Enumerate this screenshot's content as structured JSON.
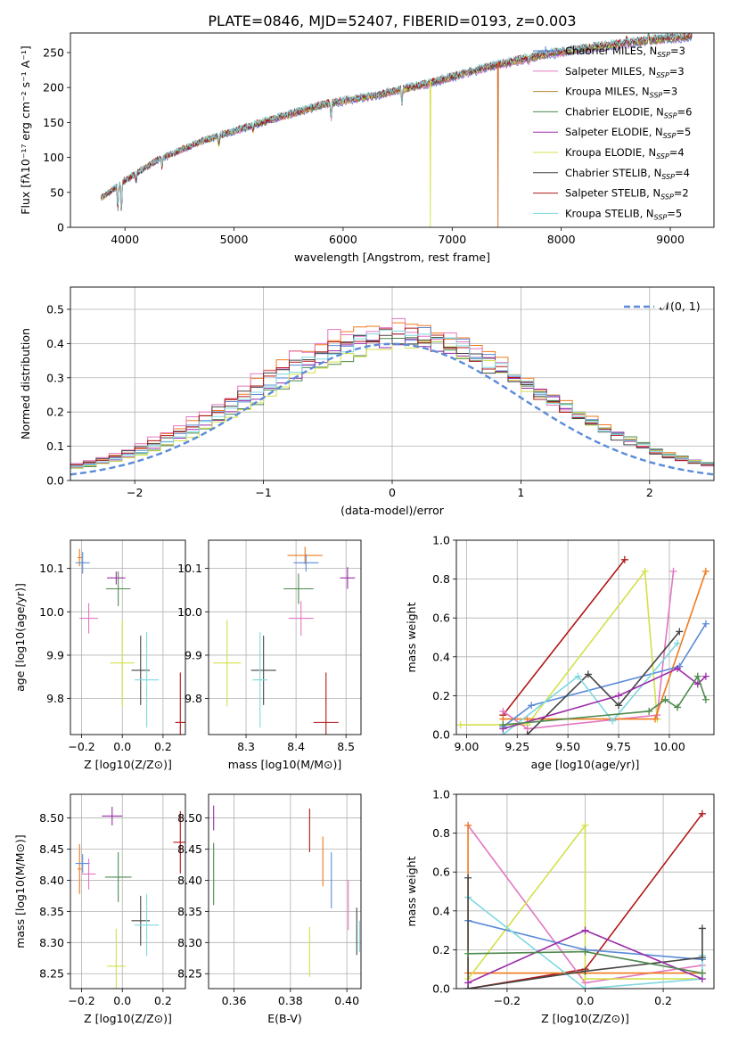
{
  "title": "PLATE=0846, MJD=52407, FIBERID=0193, z=0.003",
  "chart_data": [
    {
      "id": "spectrum",
      "type": "line",
      "xlabel": "wavelength [Angstrom, rest frame]",
      "ylabel": "Flux [fλ10⁻¹⁷ erg cm⁻² s⁻¹ A⁻¹]",
      "xlim": [
        3500,
        9400
      ],
      "ylim": [
        0,
        278
      ],
      "xticks": [
        4000,
        5000,
        6000,
        7000,
        8000,
        9000
      ],
      "yticks": [
        0,
        50,
        100,
        150,
        200,
        250
      ],
      "grid": false,
      "legend": "upper-right",
      "trend": {
        "x": [
          3780,
          4000,
          4300,
          4700,
          5200,
          5800,
          6300,
          6800,
          7300,
          7800,
          8300,
          8800,
          9200
        ],
        "y": [
          42,
          68,
          98,
          125,
          150,
          178,
          192,
          210,
          232,
          250,
          262,
          272,
          278
        ]
      },
      "sharp_drops": [
        {
          "x": 6800,
          "to": 0,
          "series": "Kroupa ELODIE, N_SSP=4"
        },
        {
          "x": 7420,
          "to": 0,
          "series": "Kroupa MILES, N_SSP=3"
        }
      ],
      "series": [
        {
          "name": "Chabrier MILES, N",
          "sub": "SSP",
          "eq": "=3",
          "color": "#4c72d9",
          "marker": "+"
        },
        {
          "name": "Salpeter MILES, N",
          "sub": "SSP",
          "eq": "=3",
          "color": "#e377c2"
        },
        {
          "name": "Kroupa MILES, N",
          "sub": "SSP",
          "eq": "=3",
          "color": "#b8862b"
        },
        {
          "name": "Chabrier ELODIE, N",
          "sub": "SSP",
          "eq": "=6",
          "color": "#4e8a4e"
        },
        {
          "name": "Salpeter ELODIE, N",
          "sub": "SSP",
          "eq": "=5",
          "color": "#9b2ca8"
        },
        {
          "name": "Kroupa ELODIE, N",
          "sub": "SSP",
          "eq": "=4",
          "color": "#d4e04a"
        },
        {
          "name": "Chabrier STELIB, N",
          "sub": "SSP",
          "eq": "=4",
          "color": "#444444"
        },
        {
          "name": "Salpeter STELIB, N",
          "sub": "SSP",
          "eq": "=2",
          "color": "#b01818"
        },
        {
          "name": "Kroupa STELIB, N",
          "sub": "SSP",
          "eq": "=5",
          "color": "#7fd8e0"
        }
      ]
    },
    {
      "id": "residuals",
      "type": "step",
      "xlabel": "(data-model)/error",
      "ylabel": "Normed distribution",
      "xlim": [
        -2.5,
        2.5
      ],
      "ylim": [
        0,
        0.565
      ],
      "xticks": [
        -2,
        -1,
        0,
        1,
        2
      ],
      "xtick_labels": [
        "−2",
        "−1",
        "0",
        "1",
        "2"
      ],
      "yticks": [
        0.0,
        0.1,
        0.2,
        0.3,
        0.4,
        0.5
      ],
      "ytick_labels": [
        "0.0",
        "0.1",
        "0.2",
        "0.3",
        "0.4",
        "0.5"
      ],
      "grid": true,
      "legend": "upper-right",
      "reference": {
        "name": "𝒩(0, 1)",
        "color": "#5b8bd8",
        "mu": 0,
        "sigma": 1
      },
      "bin_width": 0.1,
      "histograms": [
        {
          "color": "#f07a1c",
          "scale": 1.12,
          "shift": 0.02
        },
        {
          "color": "#e377c2",
          "scale": 1.1,
          "shift": -0.04
        },
        {
          "color": "#5b8bd8",
          "scale": 1.06,
          "shift": 0.05
        },
        {
          "color": "#4e8a4e",
          "scale": 0.98,
          "shift": 0.12
        },
        {
          "color": "#9b2ca8",
          "scale": 1.0,
          "shift": 0.08
        },
        {
          "color": "#d4e04a",
          "scale": 0.96,
          "shift": 0.1
        },
        {
          "color": "#444444",
          "scale": 1.03,
          "shift": -0.02
        },
        {
          "color": "#b01818",
          "scale": 1.05,
          "shift": 0.0
        },
        {
          "color": "#7fd8e0",
          "scale": 1.02,
          "shift": 0.06
        }
      ]
    },
    {
      "id": "age_vs_Z",
      "type": "scatter",
      "xlabel": "Z [log10(Z/Z⊙)]",
      "ylabel": "age  [log10(age/yr)]",
      "xlim": [
        -0.255,
        0.31
      ],
      "ylim": [
        9.717,
        10.165
      ],
      "xticks": [
        -0.2,
        0.0,
        0.2
      ],
      "xtick_labels": [
        "−0.2",
        "0.0",
        "0.2"
      ],
      "yticks": [
        9.8,
        9.9,
        10.0,
        10.1
      ],
      "ytick_labels": [
        "9.8",
        "9.9",
        "10.0",
        "10.1"
      ],
      "grid": true,
      "points": [
        {
          "x": -0.21,
          "y": 10.125,
          "xerr": 0.01,
          "yerr": 0.02,
          "color": "#f07a1c"
        },
        {
          "x": -0.195,
          "y": 10.113,
          "xerr": 0.035,
          "yerr": 0.025,
          "color": "#5b8bd8"
        },
        {
          "x": -0.03,
          "y": 10.078,
          "xerr": 0.045,
          "yerr": 0.015,
          "color": "#9b2ca8"
        },
        {
          "x": -0.02,
          "y": 10.053,
          "xerr": 0.06,
          "yerr": 0.04,
          "color": "#4e8a4e"
        },
        {
          "x": -0.165,
          "y": 9.985,
          "xerr": 0.045,
          "yerr": 0.035,
          "color": "#e377c2"
        },
        {
          "x": 0.0,
          "y": 9.882,
          "xerr": 0.06,
          "yerr": 0.1,
          "color": "#d4e04a"
        },
        {
          "x": 0.09,
          "y": 9.865,
          "xerr": 0.045,
          "yerr": 0.08,
          "color": "#444444"
        },
        {
          "x": 0.12,
          "y": 9.843,
          "xerr": 0.06,
          "yerr": 0.11,
          "color": "#7fd8e0"
        },
        {
          "x": 0.285,
          "y": 9.745,
          "xerr": 0.025,
          "yerr": 0.115,
          "color": "#b01818"
        }
      ]
    },
    {
      "id": "age_vs_mass",
      "type": "scatter",
      "xlabel": "mass [log10(M/M⊙)]",
      "ylabel": "",
      "xlim": [
        8.225,
        8.53
      ],
      "ylim": [
        9.717,
        10.165
      ],
      "xticks": [
        8.3,
        8.4,
        8.5
      ],
      "xtick_labels": [
        "8.3",
        "8.4",
        "8.5"
      ],
      "yticks": [
        9.8,
        9.9,
        10.0,
        10.1
      ],
      "ytick_labels": [
        "9.8",
        "9.9",
        "10.0",
        "10.1"
      ],
      "grid": true,
      "points": [
        {
          "x": 8.418,
          "y": 10.13,
          "xerr": 0.035,
          "yerr": 0.02,
          "color": "#f07a1c"
        },
        {
          "x": 8.42,
          "y": 10.113,
          "xerr": 0.025,
          "yerr": 0.02,
          "color": "#5b8bd8"
        },
        {
          "x": 8.503,
          "y": 10.078,
          "xerr": 0.015,
          "yerr": 0.025,
          "color": "#9b2ca8"
        },
        {
          "x": 8.405,
          "y": 10.053,
          "xerr": 0.03,
          "yerr": 0.035,
          "color": "#4e8a4e"
        },
        {
          "x": 8.41,
          "y": 9.985,
          "xerr": 0.025,
          "yerr": 0.04,
          "color": "#e377c2"
        },
        {
          "x": 8.262,
          "y": 9.882,
          "xerr": 0.028,
          "yerr": 0.1,
          "color": "#d4e04a"
        },
        {
          "x": 8.335,
          "y": 9.865,
          "xerr": 0.025,
          "yerr": 0.08,
          "color": "#444444"
        },
        {
          "x": 8.328,
          "y": 9.843,
          "xerr": 0.015,
          "yerr": 0.11,
          "color": "#7fd8e0"
        },
        {
          "x": 8.46,
          "y": 9.745,
          "xerr": 0.025,
          "yerr": 0.115,
          "color": "#b01818"
        }
      ]
    },
    {
      "id": "weight_vs_age",
      "type": "line",
      "xlabel": "age  [log10(age/yr)]",
      "ylabel": "mass weight",
      "xlim": [
        8.95,
        10.22
      ],
      "ylim": [
        0,
        1
      ],
      "xticks": [
        9.0,
        9.25,
        9.5,
        9.75,
        10.0
      ],
      "xtick_labels": [
        "9.00",
        "9.25",
        "9.50",
        "9.75",
        "10.00"
      ],
      "yticks": [
        0.0,
        0.2,
        0.4,
        0.6,
        0.8,
        1.0
      ],
      "ytick_labels": [
        "0.0",
        "0.2",
        "0.4",
        "0.6",
        "0.8",
        "1.0"
      ],
      "grid": true,
      "series": [
        {
          "color": "#b01818",
          "x": [
            9.18,
            9.78
          ],
          "y": [
            0.1,
            0.9
          ]
        },
        {
          "color": "#d4e04a",
          "x": [
            8.97,
            9.3,
            9.88,
            9.94
          ],
          "y": [
            0.05,
            0.05,
            0.84,
            0.08
          ]
        },
        {
          "color": "#e377c2",
          "x": [
            9.18,
            9.3,
            9.94,
            10.02
          ],
          "y": [
            0.12,
            0.03,
            0.1,
            0.84
          ]
        },
        {
          "color": "#f07a1c",
          "x": [
            9.18,
            9.3,
            9.93,
            10.18
          ],
          "y": [
            0.08,
            0.08,
            0.08,
            0.84
          ]
        },
        {
          "color": "#5b8bd8",
          "x": [
            9.18,
            9.32,
            10.05,
            10.18
          ],
          "y": [
            0.04,
            0.15,
            0.35,
            0.57
          ]
        },
        {
          "color": "#444444",
          "x": [
            9.3,
            9.6,
            9.75,
            10.05
          ],
          "y": [
            0.0,
            0.31,
            0.15,
            0.53
          ]
        },
        {
          "color": "#7fd8e0",
          "x": [
            9.18,
            9.55,
            9.72,
            10.04
          ],
          "y": [
            0.0,
            0.3,
            0.07,
            0.47
          ]
        },
        {
          "color": "#9b2ca8",
          "x": [
            9.18,
            9.75,
            10.04,
            10.14,
            10.18
          ],
          "y": [
            0.03,
            0.2,
            0.34,
            0.26,
            0.3
          ]
        },
        {
          "color": "#4e8a4e",
          "x": [
            9.18,
            9.9,
            9.98,
            10.04,
            10.14,
            10.18
          ],
          "y": [
            0.05,
            0.12,
            0.18,
            0.14,
            0.3,
            0.18
          ]
        }
      ]
    },
    {
      "id": "mass_vs_Z",
      "type": "scatter",
      "xlabel": "Z [log10(Z/Z⊙)]",
      "ylabel": "mass [log10(M/M⊙)]",
      "xlim": [
        -0.255,
        0.31
      ],
      "ylim": [
        8.226,
        8.538
      ],
      "xticks": [
        -0.2,
        0.0,
        0.2
      ],
      "xtick_labels": [
        "−0.2",
        "0.0",
        "0.2"
      ],
      "yticks": [
        8.25,
        8.3,
        8.35,
        8.4,
        8.45,
        8.5
      ],
      "ytick_labels": [
        "8.25",
        "8.30",
        "8.35",
        "8.40",
        "8.45",
        "8.50"
      ],
      "grid": true,
      "points": [
        {
          "x": -0.21,
          "y": 8.418,
          "xerr": 0.01,
          "yerr": 0.04,
          "color": "#f07a1c"
        },
        {
          "x": -0.195,
          "y": 8.427,
          "xerr": 0.035,
          "yerr": 0.015,
          "color": "#5b8bd8"
        },
        {
          "x": -0.165,
          "y": 8.41,
          "xerr": 0.035,
          "yerr": 0.025,
          "color": "#e377c2"
        },
        {
          "x": -0.05,
          "y": 8.503,
          "xerr": 0.05,
          "yerr": 0.015,
          "color": "#9b2ca8"
        },
        {
          "x": -0.02,
          "y": 8.405,
          "xerr": 0.065,
          "yerr": 0.04,
          "color": "#4e8a4e"
        },
        {
          "x": -0.03,
          "y": 8.262,
          "xerr": 0.045,
          "yerr": 0.06,
          "color": "#d4e04a"
        },
        {
          "x": 0.09,
          "y": 8.335,
          "xerr": 0.045,
          "yerr": 0.04,
          "color": "#444444"
        },
        {
          "x": 0.12,
          "y": 8.328,
          "xerr": 0.06,
          "yerr": 0.05,
          "color": "#7fd8e0"
        },
        {
          "x": 0.285,
          "y": 8.461,
          "xerr": 0.035,
          "yerr": 0.05,
          "color": "#b01818"
        }
      ]
    },
    {
      "id": "mass_vs_EBV",
      "type": "scatter",
      "xlabel": "E(B-V)",
      "ylabel": "",
      "xlim": [
        0.351,
        0.405
      ],
      "ylim": [
        8.226,
        8.538
      ],
      "xticks": [
        0.36,
        0.38,
        0.4
      ],
      "xtick_labels": [
        "0.36",
        "0.38",
        "0.40"
      ],
      "yticks": [
        8.25,
        8.3,
        8.35,
        8.4,
        8.45,
        8.5
      ],
      "ytick_labels": [
        "8.25",
        "8.30",
        "8.35",
        "8.40",
        "8.45",
        "8.50"
      ],
      "grid": true,
      "points": [
        {
          "x": 0.3528,
          "y": 8.5,
          "xerr": 0,
          "yerr": 0.02,
          "color": "#9b2ca8"
        },
        {
          "x": 0.3528,
          "y": 8.41,
          "xerr": 0,
          "yerr": 0.05,
          "color": "#4e8a4e"
        },
        {
          "x": 0.3868,
          "y": 8.48,
          "xerr": 0,
          "yerr": 0.035,
          "color": "#b01818"
        },
        {
          "x": 0.3915,
          "y": 8.43,
          "xerr": 0,
          "yerr": 0.04,
          "color": "#f07a1c"
        },
        {
          "x": 0.3945,
          "y": 8.4,
          "xerr": 0,
          "yerr": 0.045,
          "color": "#5b8bd8"
        },
        {
          "x": 0.3868,
          "y": 8.285,
          "xerr": 0,
          "yerr": 0.04,
          "color": "#d4e04a"
        },
        {
          "x": 0.4005,
          "y": 8.36,
          "xerr": 0,
          "yerr": 0.04,
          "color": "#e377c2"
        },
        {
          "x": 0.4035,
          "y": 8.318,
          "xerr": 0,
          "yerr": 0.038,
          "color": "#444444"
        },
        {
          "x": 0.4045,
          "y": 8.31,
          "xerr": 0,
          "yerr": 0.025,
          "color": "#7fd8e0"
        }
      ]
    },
    {
      "id": "weight_vs_Z",
      "type": "line",
      "xlabel": "Z [log10(Z/Z⊙)]",
      "ylabel": "mass weight",
      "xlim": [
        -0.33,
        0.33
      ],
      "ylim": [
        0,
        1
      ],
      "xticks": [
        -0.2,
        0.0,
        0.2
      ],
      "xtick_labels": [
        "−0.2",
        "0.0",
        "0.2"
      ],
      "yticks": [
        0.0,
        0.2,
        0.4,
        0.6,
        0.8,
        1.0
      ],
      "ytick_labels": [
        "0.0",
        "0.2",
        "0.4",
        "0.6",
        "0.8",
        "1.0"
      ],
      "grid": true,
      "series": [
        {
          "color": "#b01818",
          "x": [
            -0.3,
            0.0,
            0.3
          ],
          "y": [
            0.0,
            0.1,
            0.9
          ]
        },
        {
          "color": "#e377c2",
          "x": [
            -0.3,
            0.0,
            0.3
          ],
          "y": [
            0.84,
            0.03,
            0.12
          ]
        },
        {
          "color": "#f07a1c",
          "x": [
            -0.3,
            -0.3,
            0.0,
            0.3
          ],
          "y": [
            0.84,
            0.08,
            0.08,
            0.08
          ]
        },
        {
          "color": "#d4e04a",
          "x": [
            -0.3,
            0.0,
            0.0,
            0.3
          ],
          "y": [
            0.05,
            0.84,
            0.05,
            0.05
          ]
        },
        {
          "color": "#5b8bd8",
          "x": [
            -0.3,
            0.0,
            0.3
          ],
          "y": [
            0.35,
            0.2,
            0.15
          ]
        },
        {
          "color": "#7fd8e0",
          "x": [
            -0.3,
            0.0,
            0.3,
            0.3
          ],
          "y": [
            0.47,
            0.0,
            0.05,
            0.17
          ]
        },
        {
          "color": "#444444",
          "x": [
            -0.3,
            -0.3,
            0.0,
            0.3,
            0.3
          ],
          "y": [
            0.57,
            0.0,
            0.09,
            0.16,
            0.31
          ]
        },
        {
          "color": "#9b2ca8",
          "x": [
            -0.3,
            0.0,
            0.3
          ],
          "y": [
            0.03,
            0.3,
            0.05
          ]
        },
        {
          "color": "#4e8a4e",
          "x": [
            -0.3,
            0.0,
            0.3
          ],
          "y": [
            0.18,
            0.19,
            0.08
          ]
        }
      ]
    }
  ]
}
